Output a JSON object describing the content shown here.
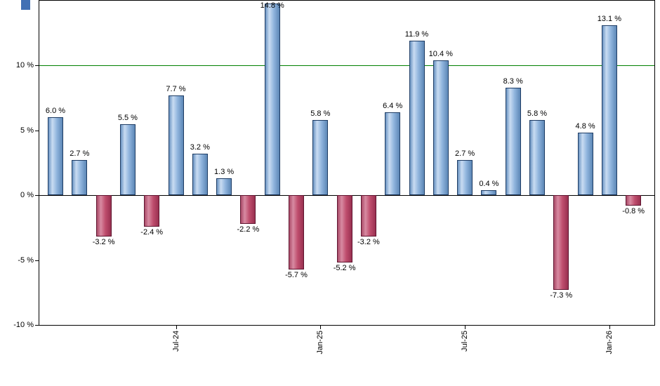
{
  "chart_data": {
    "type": "bar",
    "title": "",
    "xlabel": "",
    "ylabel": "",
    "values": [
      6.0,
      2.7,
      -3.2,
      5.5,
      -2.4,
      7.7,
      3.2,
      1.3,
      -2.2,
      14.8,
      -5.7,
      5.8,
      -5.2,
      -3.2,
      6.4,
      11.9,
      10.4,
      2.7,
      0.4,
      8.3,
      5.8,
      -7.3,
      4.8,
      13.1,
      -0.8
    ],
    "value_labels": [
      "6.0 %",
      "2.7 %",
      "-3.2 %",
      "5.5 %",
      "-2.4 %",
      "7.7 %",
      "3.2 %",
      "1.3 %",
      "-2.2 %",
      "14.8 %",
      "-5.7 %",
      "5.8 %",
      "-5.2 %",
      "-3.2 %",
      "6.4 %",
      "11.9 %",
      "10.4 %",
      "2.7 %",
      "0.4 %",
      "8.3 %",
      "5.8 %",
      "-7.3 %",
      "4.8 %",
      "13.1 %",
      "-0.8 %"
    ],
    "x_ticks": [
      {
        "label": "Jul-24",
        "index": 5
      },
      {
        "label": "Jan-25",
        "index": 11
      },
      {
        "label": "Jul-25",
        "index": 17
      },
      {
        "label": "Jan-26",
        "index": 23
      }
    ],
    "y_ticks": [
      {
        "value": 10,
        "label": "10 %"
      },
      {
        "value": 5,
        "label": "5 %"
      },
      {
        "value": 0,
        "label": "0 %"
      },
      {
        "value": -5,
        "label": "-5 %"
      },
      {
        "value": -10,
        "label": "-10 %"
      }
    ],
    "ylim": [
      -10,
      15
    ],
    "grid": false,
    "legend": false,
    "reference_line": {
      "value": 10,
      "color": "#008000"
    },
    "colors": {
      "positive": {
        "outline": "#1e3c64",
        "shade_left": "#6a93c2",
        "highlight": "#c9dcf2",
        "mid": "#8fb4dd",
        "shade_right": "#5d87b6"
      },
      "negative": {
        "outline": "#5f1530",
        "shade_left": "#aa4a68",
        "highlight": "#d88ba2",
        "mid": "#bf4e6e",
        "shade_right": "#993050"
      }
    },
    "axis_color": "#000000",
    "text_color": "#000000"
  },
  "decor": {
    "corner_color": "#4170b4"
  }
}
